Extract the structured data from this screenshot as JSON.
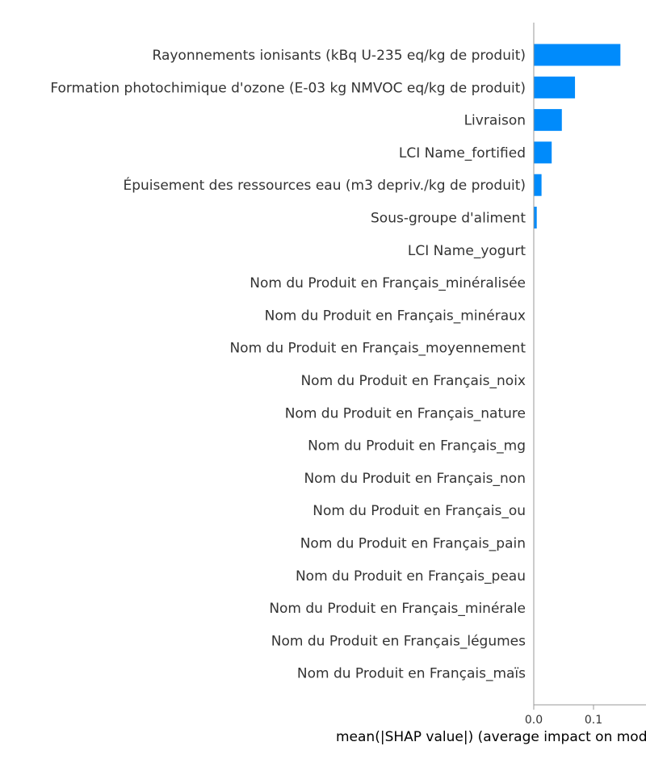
{
  "chart_data": {
    "type": "bar",
    "orientation": "horizontal",
    "categories": [
      "Rayonnements ionisants (kBq U-235 eq/kg de produit)",
      "Formation photochimique d'ozone (E-03 kg NMVOC eq/kg de produit)",
      "Livraison",
      "LCI Name_fortified",
      "Épuisement des ressources eau (m3 depriv./kg de produit)",
      "Sous-groupe d'aliment",
      "LCI Name_yogurt",
      "Nom du Produit en Français_minéralisée",
      "Nom du Produit en Français_minéraux",
      "Nom du Produit en Français_moyennement",
      "Nom du Produit en Français_noix",
      "Nom du Produit en Français_nature",
      "Nom du Produit en Français_mg",
      "Nom du Produit en Français_non",
      "Nom du Produit en Français_ou",
      "Nom du Produit en Français_pain",
      "Nom du Produit en Français_peau",
      "Nom du Produit en Français_minérale",
      "Nom du Produit en Français_légumes",
      "Nom du Produit en Français_maïs"
    ],
    "values": [
      0.145,
      0.069,
      0.047,
      0.03,
      0.013,
      0.005,
      0,
      0,
      0,
      0,
      0,
      0,
      0,
      0,
      0,
      0,
      0,
      0,
      0,
      0
    ],
    "xlabel": "mean(|SHAP value|) (average impact on model output magnitude)",
    "xticks": [
      0.0,
      0.1
    ],
    "xtick_labels": [
      "0.0",
      "0.1"
    ],
    "xlim": [
      0,
      0.15
    ],
    "bar_color": "#008bfb",
    "grid": false
  }
}
